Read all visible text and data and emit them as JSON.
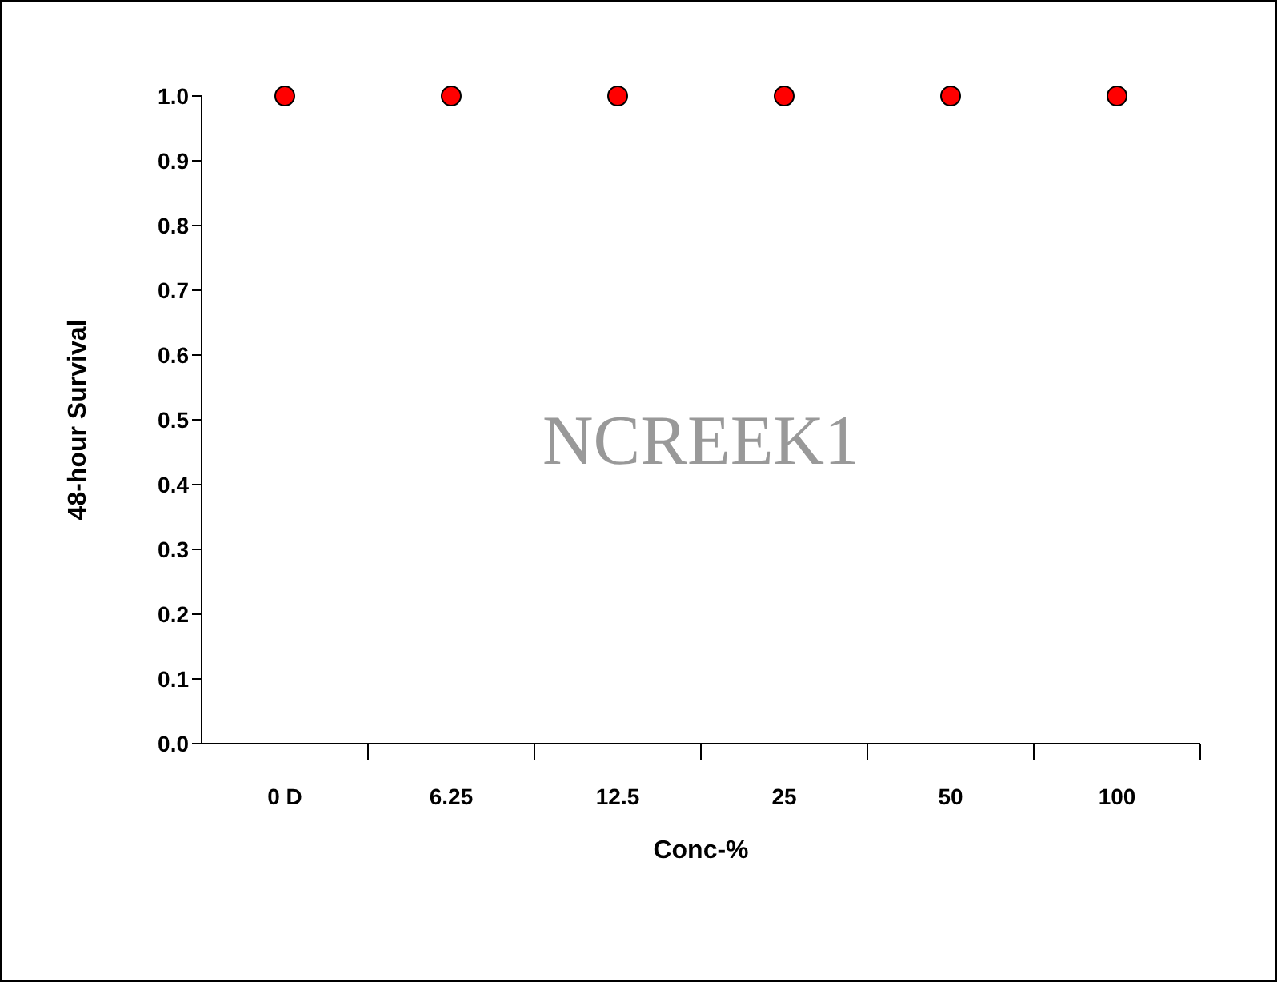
{
  "chart_data": {
    "type": "scatter",
    "xlabel": "Conc-%",
    "ylabel": "48-hour Survival",
    "categories": [
      "0 D",
      "6.25",
      "12.5",
      "25",
      "50",
      "100"
    ],
    "series": [
      {
        "color": "#ff0000",
        "values": [
          1,
          1,
          1,
          1,
          1,
          1
        ]
      }
    ],
    "ylim": [
      0,
      1
    ],
    "yticks": [
      {
        "value": 0,
        "label": "0.0"
      },
      {
        "value": 0.1,
        "label": "0.1"
      },
      {
        "value": 0.2,
        "label": "0.2"
      },
      {
        "value": 0.3,
        "label": "0.3"
      },
      {
        "value": 0.4,
        "label": "0.4"
      },
      {
        "value": 0.5,
        "label": "0.5"
      },
      {
        "value": 0.6,
        "label": "0.6"
      },
      {
        "value": 0.7,
        "label": "0.7"
      },
      {
        "value": 0.8,
        "label": "0.8"
      },
      {
        "value": 0.9,
        "label": "0.9"
      },
      {
        "value": 1,
        "label": "1.0"
      }
    ],
    "marker": "circle",
    "annotations": [
      "NCREEK1"
    ]
  }
}
